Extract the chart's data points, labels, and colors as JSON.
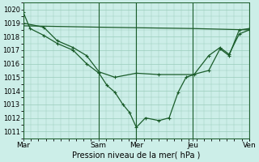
{
  "background_color": "#cceee8",
  "grid_color": "#99ccbb",
  "line_color": "#1a5c2a",
  "xtick_labels": [
    "Mar",
    "Sam",
    "Mer",
    "Jeu",
    "Ven"
  ],
  "xtick_positions": [
    0.0,
    0.333,
    0.5,
    0.75,
    1.0
  ],
  "ylim": [
    1010.5,
    1020.5
  ],
  "yticks": [
    1011,
    1012,
    1013,
    1014,
    1015,
    1016,
    1017,
    1018,
    1019,
    1020
  ],
  "xlabel": "Pression niveau de la mer( hPa )",
  "line1_main": {
    "x": [
      0.0,
      0.03,
      0.09,
      0.15,
      0.22,
      0.28,
      0.335,
      0.37,
      0.405,
      0.44,
      0.47,
      0.5,
      0.54,
      0.6,
      0.645,
      0.685,
      0.72,
      0.755,
      0.82,
      0.87,
      0.91,
      0.955,
      1.0
    ],
    "y": [
      1019.8,
      1018.6,
      1018.1,
      1017.5,
      1017.0,
      1016.0,
      1015.3,
      1014.4,
      1013.9,
      1013.0,
      1012.4,
      1011.3,
      1012.0,
      1011.8,
      1012.0,
      1013.9,
      1015.0,
      1015.2,
      1016.6,
      1017.2,
      1016.7,
      1018.2,
      1018.5
    ]
  },
  "line2_medium": {
    "x": [
      0.0,
      0.09,
      0.15,
      0.22,
      0.28,
      0.335,
      0.405,
      0.5,
      0.6,
      0.75,
      0.82,
      0.87,
      0.91,
      0.955,
      1.0
    ],
    "y": [
      1019.0,
      1018.7,
      1017.7,
      1017.2,
      1016.6,
      1015.4,
      1015.0,
      1015.3,
      1015.2,
      1015.2,
      1015.5,
      1017.1,
      1016.6,
      1018.5,
      1018.6
    ]
  },
  "line3_flat": {
    "x": [
      0.0,
      0.333,
      0.75,
      1.0
    ],
    "y": [
      1018.8,
      1018.7,
      1018.6,
      1018.5
    ]
  }
}
